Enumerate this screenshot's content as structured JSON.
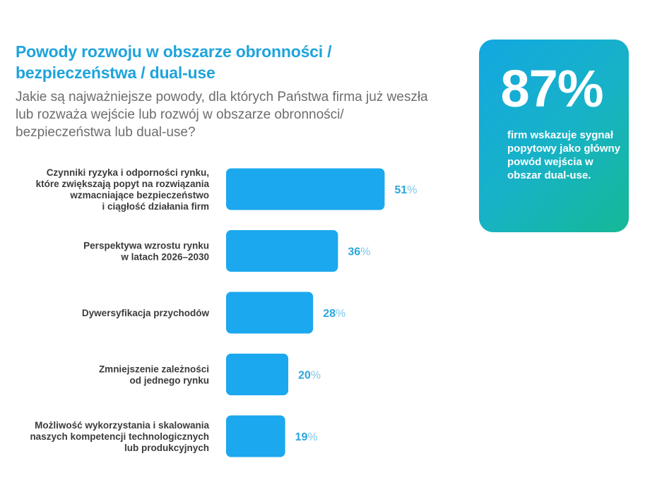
{
  "header": {
    "title": "Powody rozwoju w obszarze obronności / bezpieczeństwa / dual-use",
    "question": "Jakie są najważniejsze powody, dla których Państwa firma już weszła lub rozważa wejście lub rozwój w obszarze obronności/ bezpieczeństwa lub dual-use?"
  },
  "highlight": {
    "value": "87%",
    "text": "firm wskazuje sygnał popytowy jako główny powód wejścia w obszar dual-use."
  },
  "colors": {
    "title": "#1fa3dc",
    "bar": "#1ba8ee",
    "value_number": "#2aa6dd",
    "value_percent": "#7cc8ea",
    "card_gradient": [
      "#13a7e0",
      "#16b896"
    ]
  },
  "chart_data": {
    "type": "bar",
    "orientation": "horizontal",
    "unit": "%",
    "categories": [
      [
        "Czynniki ryzyka i odporności rynku,",
        "które zwiększają popyt na rozwiązania",
        "wzmacniające bezpieczeństwo",
        "i ciągłość działania firm"
      ],
      [
        "Perspektywa wzrostu rynku",
        "w latach 2026–2030"
      ],
      [
        "Dywersyfikacja przychodów"
      ],
      [
        "Zmniejszenie zależności",
        "od jednego rynku"
      ],
      [
        "Możliwość wykorzystania i skalowania",
        "naszych kompetencji technologicznych",
        "lub produkcyjnych"
      ]
    ],
    "values": [
      51,
      36,
      28,
      20,
      19
    ],
    "xlim": [
      0,
      100
    ],
    "grid": false,
    "legend": "none"
  }
}
